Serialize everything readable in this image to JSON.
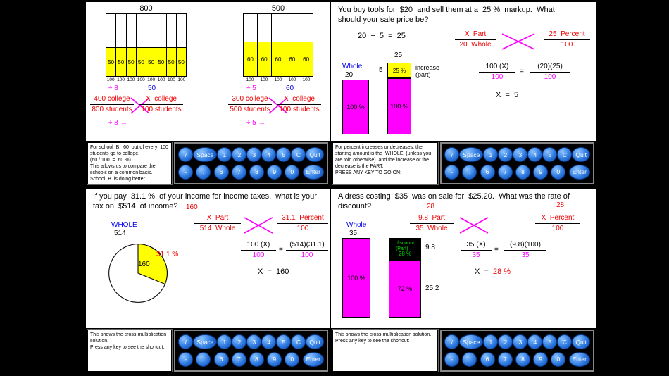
{
  "keypad": {
    "row1": [
      "/",
      "Space",
      "1",
      "2",
      "3",
      "4",
      "5",
      "C",
      "Quit"
    ],
    "row2": [
      "-",
      ".",
      "6",
      "7",
      "8",
      "9",
      "0",
      "Enter"
    ]
  },
  "colors": {
    "bar_magenta": "#ff00ff",
    "cell_yellow": "#ffff00",
    "label_blue": "#0000ee",
    "work_red": "#ee0000",
    "discount_green": "#00dd00",
    "key_blue": "#2f7ae0"
  },
  "q1": {
    "chart_a": {
      "total": "800",
      "cells": [
        "50",
        "50",
        "50",
        "50",
        "50",
        "50",
        "50",
        "50"
      ],
      "bases": [
        "100",
        "100",
        "100",
        "100",
        "100",
        "100",
        "100",
        "100"
      ]
    },
    "chart_b": {
      "total": "500",
      "cells": [
        "60",
        "60",
        "60",
        "60",
        "60"
      ],
      "bases": [
        "100",
        "100",
        "100",
        "100",
        "100"
      ]
    },
    "prop_a": {
      "div_top": "÷ 8",
      "div_bottom": "÷ 8",
      "arrow": "→",
      "num1": "400 college",
      "den1": "800 students",
      "hint": "50",
      "num2": "X  college",
      "den2": "100 students"
    },
    "prop_b": {
      "div_top": "÷ 5",
      "div_bottom": "÷ 5",
      "arrow": "→",
      "num1": "300 college",
      "den1": "500 students",
      "hint": "60",
      "num2": "X  college",
      "den2": "100 students"
    },
    "info": "For school  B,  60  out of every  100  students go to college.\n(60 / 100  =  60 %).\nThis allows us to compare the schools on a common basis.  School  B  is doing better.\nPRESS ANY KEY TO GO ON:"
  },
  "q2": {
    "question": "You buy tools for  $20  and sell them at a  25 %  markup.  What\nshould your sale price be?",
    "equation": "20  +  5  =  25",
    "whole_label": "Whole",
    "whole_value": "20",
    "bar1_fill": "100 %",
    "bar2_total": "25",
    "increase_value": "5",
    "increase_pct": "25 %",
    "bar2_fill": "100 %",
    "increase_note": "increase\n(part)",
    "prop": {
      "num1": "X  Part",
      "den1": "20  Whole",
      "num2": "25  Percent",
      "den2": "100"
    },
    "step": {
      "num1": "100 (X)",
      "den1": "100",
      "eq": "=",
      "num2": "(20)(25)",
      "den2": "100"
    },
    "answer": "X  =  5",
    "info": "For percent increases or decreases, the starting amount is the  WHOLE  (unless you are told otherwise)  and the increase or the decrease is the PART.\nPRESS ANY KEY TO GO ON:"
  },
  "q3": {
    "question": "If you pay  31.1 %  of your income for income taxes,  what is your\ntax on  $514  of income?",
    "hint": "160",
    "whole_label": "WHOLE",
    "whole_value": "514",
    "pie_value": "160",
    "pie_pct_label": "31.1 %",
    "prop": {
      "num1": "X  Part",
      "den1": "514  Whole",
      "num2": "31.1  Percent",
      "den2": "100"
    },
    "step": {
      "num1": "100 (X)",
      "den1": "100",
      "eq": "=",
      "num2": "(514)(31.1)",
      "den2": "100"
    },
    "answer": "X  =  160",
    "info": "This shows the cross-multiplication solution.\nPress any key to see the shortcut:"
  },
  "q4": {
    "question": "A dress costing  $35  was on sale for  $25.20.  What was the rate of\ndiscount?",
    "hint_left": "28",
    "hint_right": "28",
    "whole_label": "Whole",
    "whole_value": "35",
    "bar1_fill": "100 %",
    "discount_label": "discount\n(Part)",
    "discount_pct": "28 %",
    "discount_value": "9.8",
    "sale_pct": "72 %",
    "sale_value": "25.2",
    "prop": {
      "num1": "9.8  Part",
      "den1": "35  Whole",
      "num2": "X  Percent",
      "den2": "100"
    },
    "step": {
      "num1": "35 (X)",
      "den1": "35",
      "eq": "=",
      "num2": "(9.8)(100)",
      "den2": "35"
    },
    "answer_prefix": "X  =  ",
    "answer_value": "28 %",
    "info": "This shows the cross-multiplication solution.\nPress any key to see the shortcut:"
  }
}
